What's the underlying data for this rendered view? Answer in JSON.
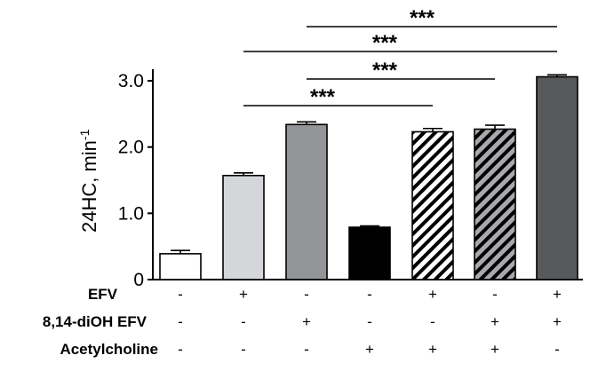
{
  "chart_data": {
    "type": "bar",
    "ylabel_main": "24HC, min",
    "ylabel_sup": "-1",
    "ylim": [
      0,
      3.4
    ],
    "yticks": [
      {
        "value": 0,
        "label": "0"
      },
      {
        "value": 1.0,
        "label": "1.0"
      },
      {
        "value": 2.0,
        "label": "2.0"
      },
      {
        "value": 3.0,
        "label": "3.0"
      }
    ],
    "values": [
      0.39,
      1.57,
      2.34,
      0.79,
      2.23,
      2.27,
      3.06
    ],
    "errors": [
      0.05,
      0.04,
      0.04,
      0.02,
      0.05,
      0.06,
      0.03
    ],
    "bar_styles": [
      {
        "fill": "#ffffff",
        "pattern": "none"
      },
      {
        "fill": "#d4d6d9",
        "pattern": "none"
      },
      {
        "fill": "#939598",
        "pattern": "none"
      },
      {
        "fill": "#000000",
        "pattern": "none"
      },
      {
        "fill": "#ffffff",
        "pattern": "hatch",
        "stripe": "#000000"
      },
      {
        "fill": "#a7a9ac",
        "pattern": "hatch",
        "stripe": "#000000"
      },
      {
        "fill": "#58595b",
        "pattern": "none"
      }
    ],
    "conditions": [
      {
        "label": "EFV",
        "signs": [
          "-",
          "+",
          "-",
          "-",
          "+",
          "-",
          "+"
        ]
      },
      {
        "label": "8,14-diOH EFV",
        "signs": [
          "-",
          "-",
          "+",
          "-",
          "-",
          "+",
          "+"
        ]
      },
      {
        "label": "Acetylcholine",
        "signs": [
          "-",
          "-",
          "-",
          "+",
          "+",
          "+",
          "-"
        ]
      }
    ],
    "significance": [
      {
        "from": 3,
        "to": 7,
        "label": "***"
      },
      {
        "from": 2,
        "to": 7,
        "label": "***"
      },
      {
        "from": 3,
        "to": 6,
        "label": "***"
      },
      {
        "from": 2,
        "to": 5,
        "label": "***"
      }
    ]
  }
}
